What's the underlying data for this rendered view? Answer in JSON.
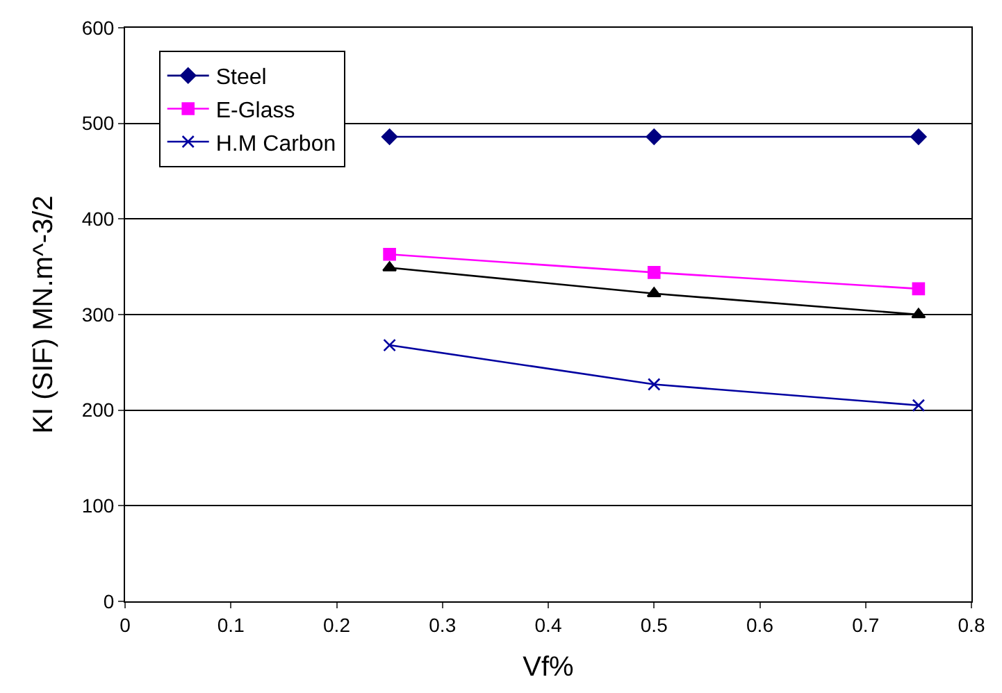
{
  "chart_data": {
    "type": "line",
    "xlabel": "Vf%",
    "ylabel": "KI (SIF) MN.m^-3/2",
    "x": [
      0.25,
      0.5,
      0.75
    ],
    "series": [
      {
        "name": "Steel",
        "color": "#000080",
        "marker": "diamond",
        "values": [
          486,
          486,
          486
        ]
      },
      {
        "name": "E-Glass",
        "color": "#ff00ff",
        "marker": "square",
        "values": [
          363,
          344,
          327
        ]
      },
      {
        "color": "#000000",
        "marker": "triangle",
        "values": [
          349,
          322,
          300
        ]
      },
      {
        "name": "H.M Carbon",
        "color": "#0000a0",
        "marker": "cross",
        "values": [
          268,
          227,
          205
        ]
      }
    ],
    "xlim": [
      0,
      0.8
    ],
    "xticks": [
      0,
      0.1,
      0.2,
      0.3,
      0.4,
      0.5,
      0.6,
      0.7,
      0.8
    ],
    "ylim": [
      0,
      600
    ],
    "yticks": [
      0,
      100,
      200,
      300,
      400,
      500,
      600
    ],
    "grid": "y",
    "legend": "top left",
    "line_style": "solid"
  }
}
